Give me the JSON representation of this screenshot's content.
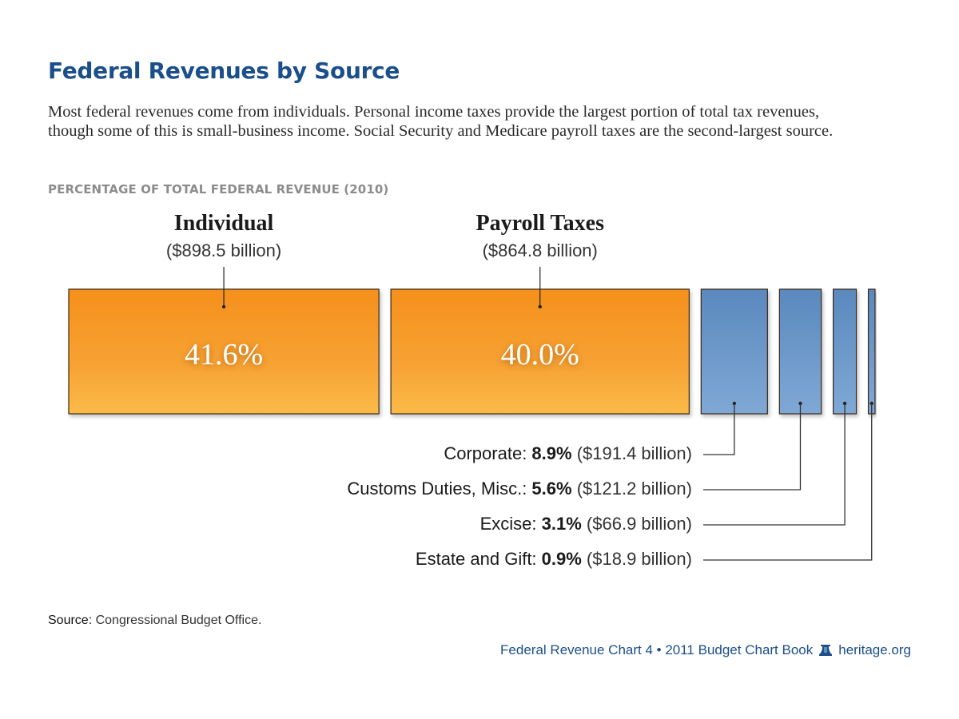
{
  "header": {
    "title": "Federal Revenues by Source",
    "description": "Most federal revenues come from individuals. Personal income taxes provide the largest portion of total tax revenues, though some of this is small-business income. Social Security and Medicare payroll taxes are the second-largest source."
  },
  "chart_data": {
    "type": "bar",
    "title": "Federal Revenues by Source",
    "subtitle": "PERCENTAGE OF TOTAL FEDERAL REVENUE (2010)",
    "unit": "percent of total federal revenue",
    "categories": [
      "Individual",
      "Payroll Taxes",
      "Corporate",
      "Customs Duties, Misc.",
      "Excise",
      "Estate and Gift"
    ],
    "values": [
      41.6,
      40.0,
      8.9,
      5.6,
      3.1,
      0.9
    ],
    "amounts_billion": [
      898.5,
      864.8,
      191.4,
      121.2,
      66.9,
      18.9
    ],
    "labels": [
      {
        "name": "Individual",
        "pct": "41.6%",
        "amount": "($898.5 billion)",
        "color": "#f7941d"
      },
      {
        "name": "Payroll Taxes",
        "pct": "40.0%",
        "amount": "($864.8 billion)",
        "color": "#f7941d"
      },
      {
        "name": "Corporate:",
        "pct": "8.9%",
        "amount": "($191.4 billion)",
        "color": "#6a97c8"
      },
      {
        "name": "Customs Duties, Misc.:",
        "pct": "5.6%",
        "amount": "($121.2 billion)",
        "color": "#6a97c8"
      },
      {
        "name": "Excise:",
        "pct": "3.1%",
        "amount": "($66.9 billion)",
        "color": "#6a97c8"
      },
      {
        "name": "Estate and Gift:",
        "pct": "0.9%",
        "amount": "($18.9 billion)",
        "color": "#6a97c8"
      }
    ],
    "colors": {
      "major": "#f7941d",
      "major_light": "#fbb040",
      "minor": "#5b8bc0",
      "minor_light": "#7ea7d4"
    }
  },
  "footer": {
    "source_label": "Source:",
    "source_text": "Congressional Budget Office.",
    "credit": "Federal Revenue Chart 4 • 2011 Budget Chart Book",
    "site": "heritage.org",
    "logo_icon": "liberty-bell-icon"
  }
}
